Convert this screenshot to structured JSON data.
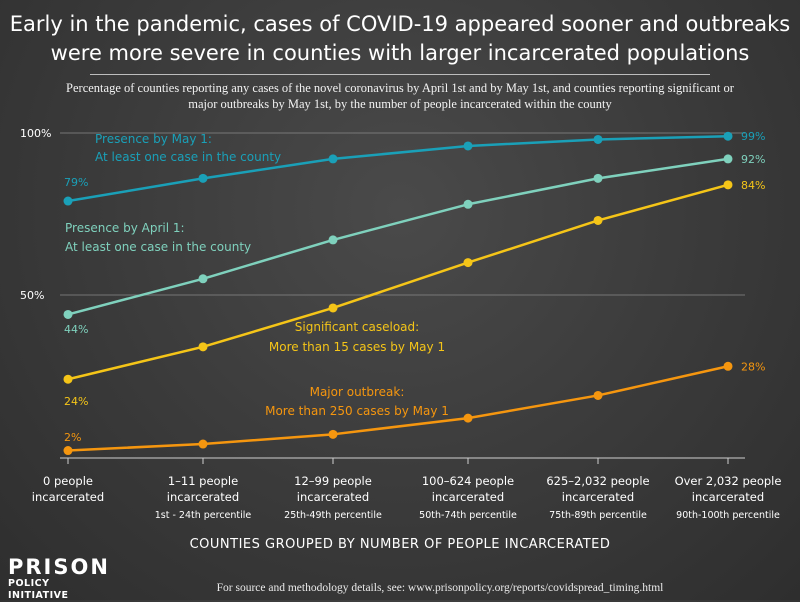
{
  "title": "Early in the pandemic, cases of COVID-19 appeared sooner and outbreaks were more severe in counties with larger incarcerated populations",
  "subtitle": "Percentage of counties reporting any cases of the novel coronavirus by April 1st and by May 1st, and counties reporting significant or major outbreaks by May 1st, by the number of people incarcerated within the county",
  "x_axis_title": "COUNTIES GROUPED BY NUMBER OF PEOPLE INCARCERATED",
  "source": "For source and methodology details, see: www.prisonpolicy.org/reports/covidspread_timing.html",
  "logo": {
    "line1": "PRISON",
    "line2": "POLICY INITIATIVE"
  },
  "colors": {
    "may1": "#1aa0b8",
    "apr1": "#7fd1bd",
    "significant": "#f5c518",
    "major": "#f5960f",
    "grid": "#8a8a8a"
  },
  "chart_data": {
    "type": "line",
    "ylim": [
      0,
      100
    ],
    "y_ticks": [
      {
        "value": 100,
        "label": "100%"
      },
      {
        "value": 50,
        "label": "50%"
      }
    ],
    "categories": [
      {
        "line1": "0 people",
        "line2": "incarcerated",
        "line3": ""
      },
      {
        "line1": "1–11 people",
        "line2": "incarcerated",
        "line3": "1st - 24th percentile"
      },
      {
        "line1": "12–99 people",
        "line2": "incarcerated",
        "line3": "25th-49th percentile"
      },
      {
        "line1": "100–624 people",
        "line2": "incarcerated",
        "line3": "50th-74th percentile"
      },
      {
        "line1": "625–2,032 people",
        "line2": "incarcerated",
        "line3": "75th-89th percentile"
      },
      {
        "line1": "Over 2,032 people",
        "line2": "incarcerated",
        "line3": "90th-100th percentile"
      }
    ],
    "series": [
      {
        "key": "may1",
        "name_line1": "Presence by May 1:",
        "name_line2": "At least one case in the county",
        "values": [
          79,
          86,
          92,
          96,
          98,
          99
        ],
        "start_label": "79%",
        "end_label": "99%",
        "markers": true
      },
      {
        "key": "apr1",
        "name_line1": "Presence by April 1:",
        "name_line2": "At least one case in the county",
        "values": [
          44,
          55,
          67,
          78,
          86,
          92
        ],
        "start_label": "44%",
        "end_label": "92%",
        "markers": true
      },
      {
        "key": "significant",
        "name_line1": "Significant caseload:",
        "name_line2": "More than 15 cases by May 1",
        "values": [
          24,
          34,
          46,
          60,
          73,
          84
        ],
        "start_label": "24%",
        "end_label": "84%",
        "markers": true
      },
      {
        "key": "major",
        "name_line1": "Major outbreak:",
        "name_line2": "More than 250 cases by May 1",
        "values": [
          2,
          4,
          7,
          12,
          19,
          28
        ],
        "start_label": "2%",
        "end_label": "28%",
        "markers": true
      }
    ]
  }
}
